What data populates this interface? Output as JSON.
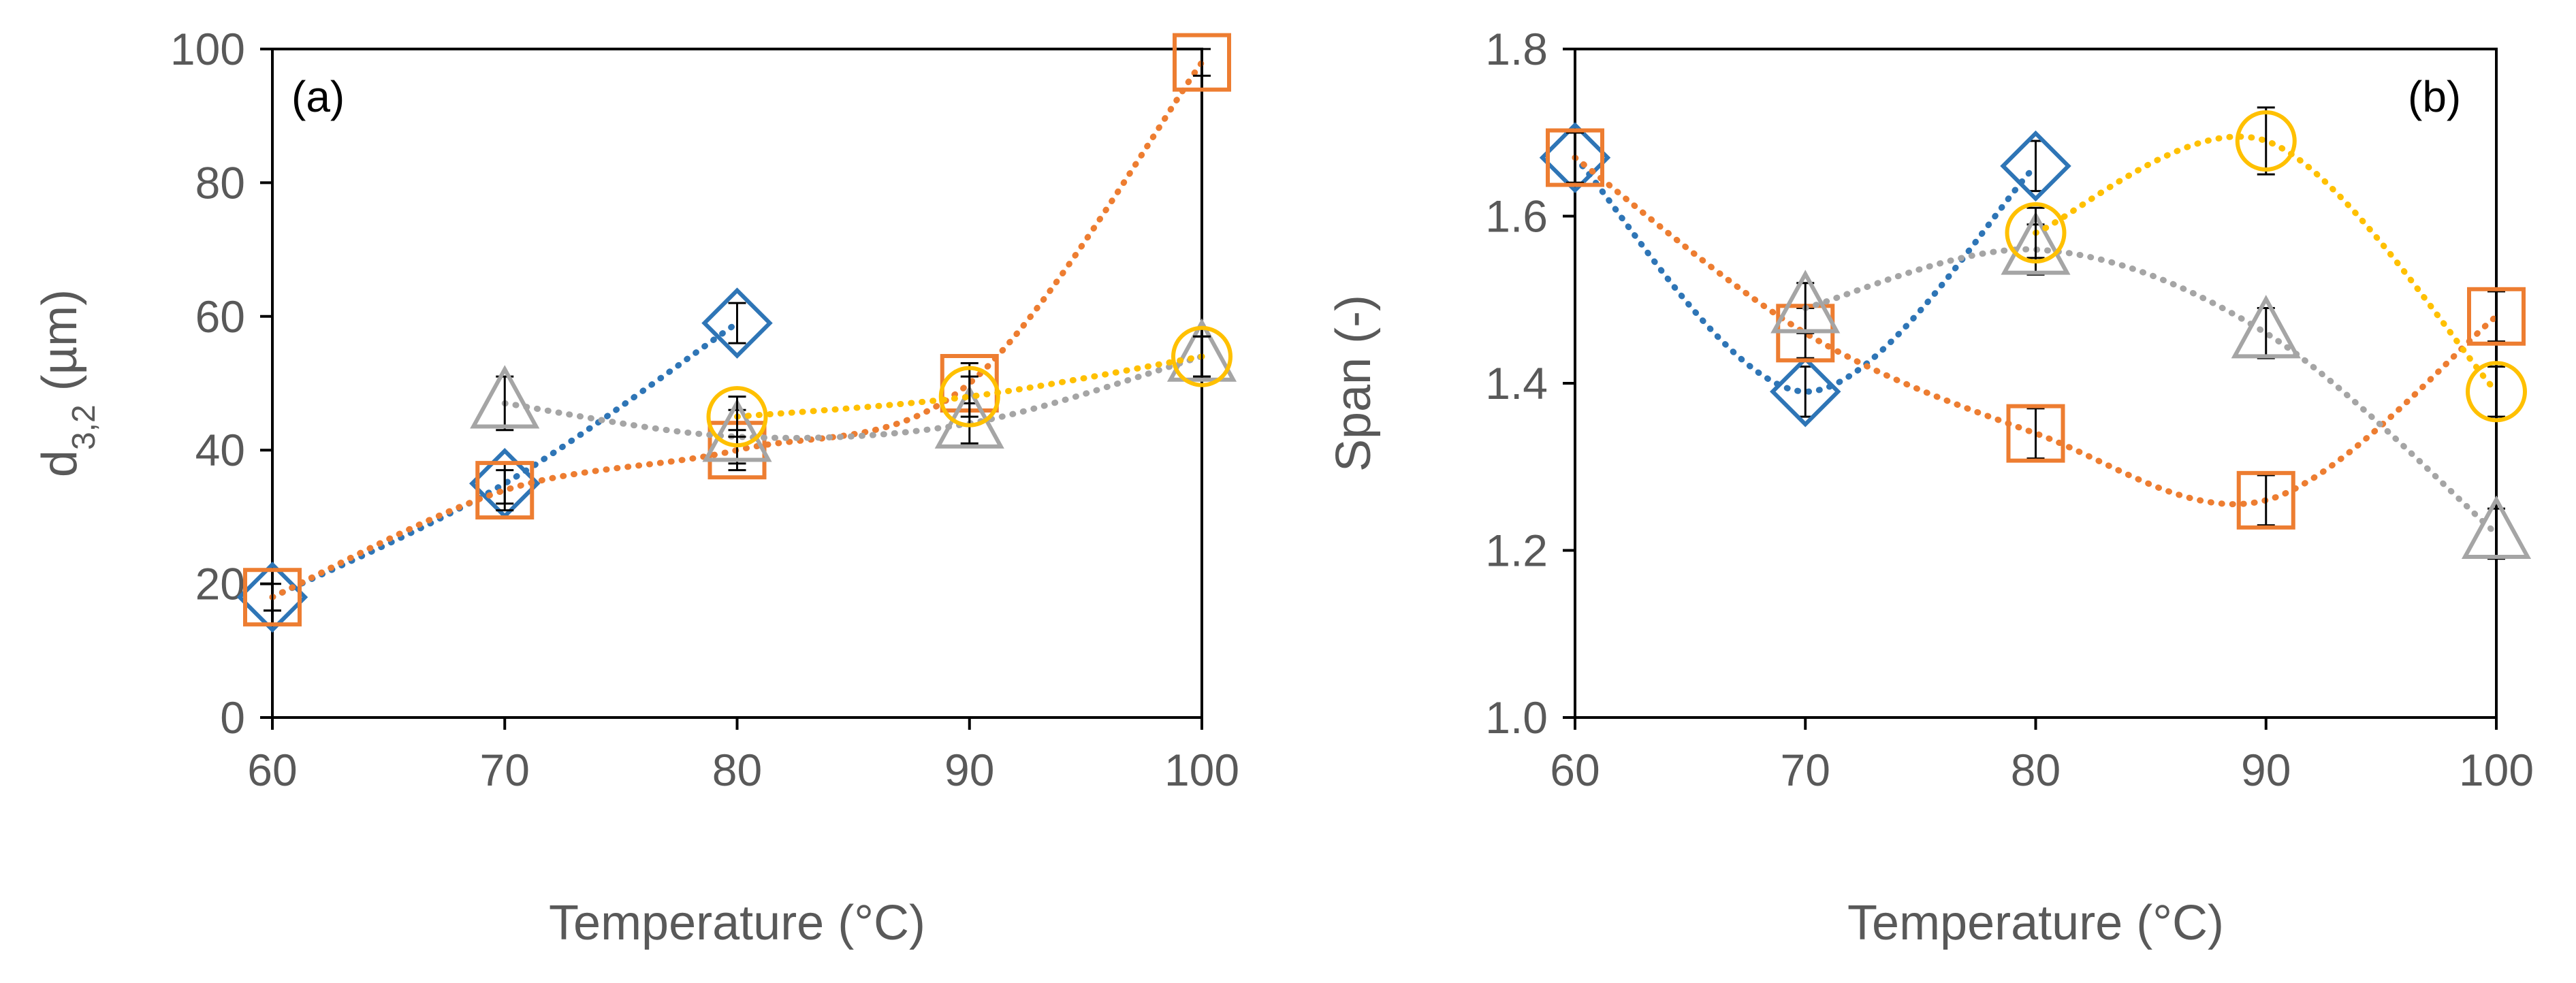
{
  "chart_data": [
    {
      "type": "scatter",
      "panel_label": "(a)",
      "title": "",
      "xlabel": "Temperature (°C)",
      "ylabel_main": "d",
      "ylabel_sub": "3,2",
      "ylabel_unit": " (µm)",
      "xlim": [
        60,
        100
      ],
      "ylim": [
        0,
        100
      ],
      "xticks": [
        "60",
        "70",
        "80",
        "90",
        "100"
      ],
      "yticks": [
        "0",
        "20",
        "40",
        "60",
        "80",
        "100"
      ],
      "grid": false,
      "legend": "none",
      "series": [
        {
          "color": "#2e75b6",
          "marker": "diamond",
          "x": [
            60,
            70,
            80
          ],
          "y": [
            18,
            35,
            59
          ],
          "err": [
            2,
            3,
            3
          ]
        },
        {
          "color": "#ed7d31",
          "marker": "square",
          "x": [
            60,
            70,
            80,
            90,
            100
          ],
          "y": [
            18,
            34,
            40,
            50,
            98
          ],
          "err": [
            2,
            3,
            3,
            3,
            2
          ]
        },
        {
          "color": "#a5a5a5",
          "marker": "triangle",
          "x": [
            70,
            80,
            90,
            100
          ],
          "y": [
            47,
            42,
            44,
            54
          ],
          "err": [
            4,
            4,
            3,
            3
          ]
        },
        {
          "color": "#ffc000",
          "marker": "circle",
          "x": [
            80,
            90,
            100
          ],
          "y": [
            45,
            48,
            54
          ],
          "err": [
            3,
            3,
            3
          ]
        }
      ]
    },
    {
      "type": "scatter",
      "panel_label": "(b)",
      "title": "",
      "xlabel": "Temperature (°C)",
      "ylabel_main": "Span (-)",
      "ylabel_sub": "",
      "ylabel_unit": "",
      "xlim": [
        60,
        100
      ],
      "ylim": [
        1.0,
        1.8
      ],
      "xticks": [
        "60",
        "70",
        "80",
        "90",
        "100"
      ],
      "yticks": [
        "1.0",
        "1.2",
        "1.4",
        "1.6",
        "1.8"
      ],
      "grid": false,
      "legend": "none",
      "series": [
        {
          "color": "#2e75b6",
          "marker": "diamond",
          "x": [
            60,
            70,
            80
          ],
          "y": [
            1.67,
            1.39,
            1.66
          ],
          "err": [
            0.03,
            0.03,
            0.03
          ]
        },
        {
          "color": "#ed7d31",
          "marker": "square",
          "x": [
            60,
            70,
            80,
            90,
            100
          ],
          "y": [
            1.67,
            1.46,
            1.34,
            1.26,
            1.48
          ],
          "err": [
            0.03,
            0.03,
            0.03,
            0.03,
            0.03
          ]
        },
        {
          "color": "#a5a5a5",
          "marker": "triangle",
          "x": [
            70,
            80,
            90,
            100
          ],
          "y": [
            1.49,
            1.56,
            1.46,
            1.22
          ],
          "err": [
            0.03,
            0.03,
            0.03,
            0.03
          ]
        },
        {
          "color": "#ffc000",
          "marker": "circle",
          "x": [
            80,
            90,
            100
          ],
          "y": [
            1.58,
            1.69,
            1.39
          ],
          "err": [
            0.03,
            0.04,
            0.03
          ]
        }
      ]
    }
  ]
}
